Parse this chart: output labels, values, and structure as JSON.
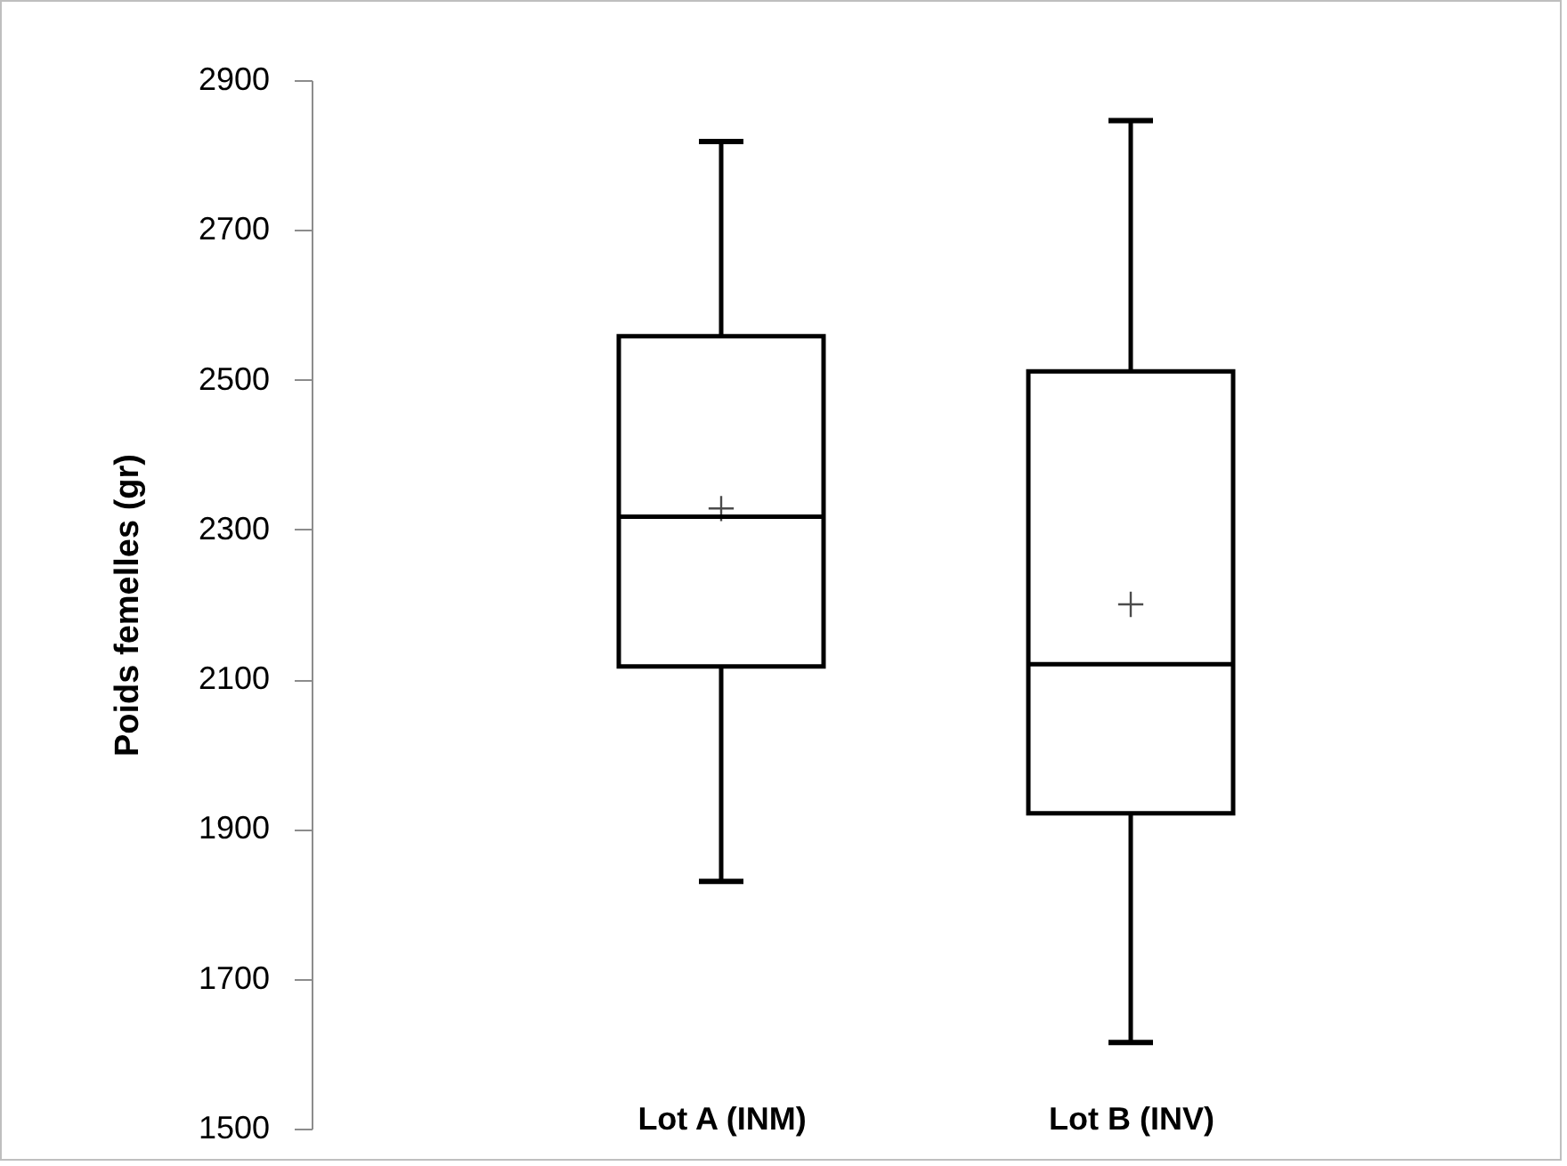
{
  "chart_data": {
    "type": "box",
    "ylabel": "Poids  femelles (gr)",
    "categories": [
      "Lot A (INM)",
      "Lot B (INV)"
    ],
    "boxes": [
      {
        "low": 1830,
        "q1": 2117,
        "median": 2317,
        "q3": 2558,
        "high": 2818,
        "mean": 2328
      },
      {
        "low": 1615,
        "q1": 1921,
        "median": 2120,
        "q3": 2511,
        "high": 2846,
        "mean": 2200
      }
    ],
    "ylim": [
      1500,
      2900
    ],
    "yticks": [
      1500,
      1700,
      1900,
      2100,
      2300,
      2500,
      2700,
      2900
    ],
    "grid": false
  }
}
